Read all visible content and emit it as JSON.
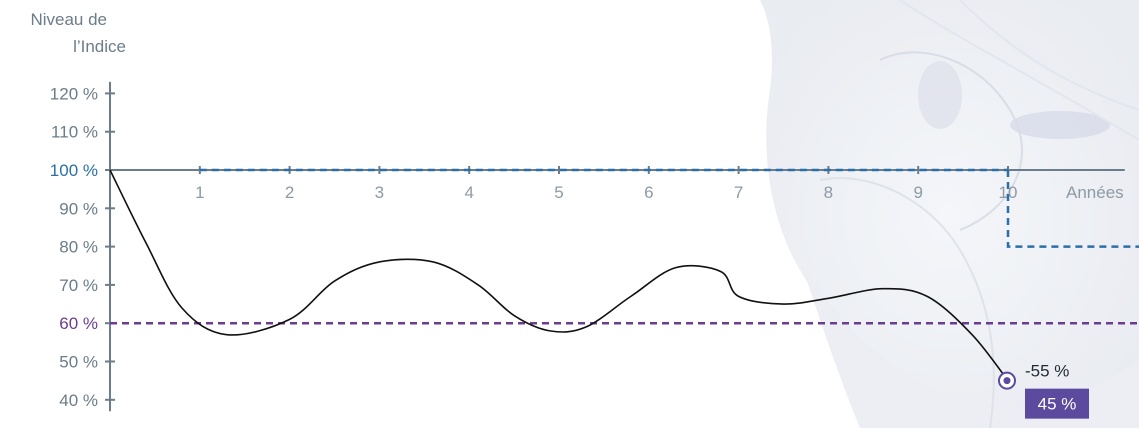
{
  "chart_data": {
    "type": "line",
    "ylabel_line1": "Niveau de",
    "ylabel_line2": "l’Indice",
    "xlabel": "Années",
    "yticks": [
      {
        "value": 120,
        "label": "120 %"
      },
      {
        "value": 110,
        "label": "110 %"
      },
      {
        "value": 100,
        "label": "100 %"
      },
      {
        "value": 90,
        "label": "90 %"
      },
      {
        "value": 80,
        "label": "80 %"
      },
      {
        "value": 70,
        "label": "70 %"
      },
      {
        "value": 60,
        "label": "60 %"
      },
      {
        "value": 50,
        "label": "50 %"
      },
      {
        "value": 40,
        "label": "40 %"
      }
    ],
    "xticks": [
      1,
      2,
      3,
      4,
      5,
      6,
      7,
      8,
      9,
      10
    ],
    "xlim": [
      0,
      11.3
    ],
    "ylim": [
      37,
      123
    ],
    "reference_lines": [
      {
        "value": 100,
        "color": "#2a6fa8",
        "style": "dashed"
      },
      {
        "value": 60,
        "color": "#6b3d91",
        "style": "dashed"
      }
    ],
    "step_line": {
      "x_step": 10,
      "y_after": 80,
      "color": "#2a6fa8",
      "style": "dashed"
    },
    "series": [
      {
        "color": "#111111",
        "points": [
          [
            0,
            100
          ],
          [
            0.4,
            81
          ],
          [
            0.8,
            64
          ],
          [
            1.3,
            57
          ],
          [
            2.0,
            61
          ],
          [
            2.5,
            71
          ],
          [
            3.0,
            76
          ],
          [
            3.6,
            76
          ],
          [
            4.1,
            70
          ],
          [
            4.5,
            62
          ],
          [
            4.9,
            58
          ],
          [
            5.3,
            59
          ],
          [
            5.8,
            67
          ],
          [
            6.3,
            74.5
          ],
          [
            6.8,
            73.5
          ],
          [
            7.0,
            67
          ],
          [
            7.5,
            65
          ],
          [
            8.0,
            66.5
          ],
          [
            8.6,
            69
          ],
          [
            9.1,
            67
          ],
          [
            9.6,
            57
          ],
          [
            10.0,
            45
          ]
        ]
      }
    ],
    "end_marker": {
      "x": 10,
      "y": 45,
      "change_label": "-55 %",
      "value_label": "45 %",
      "badge_color": "#5b4a9e"
    }
  },
  "colors": {
    "axis": "#6b7c8a",
    "blue": "#2a6fa8",
    "purple": "#6b3d91",
    "tick_highlight_100": "#2a6fa8",
    "tick_highlight_60": "#6b3d91"
  }
}
